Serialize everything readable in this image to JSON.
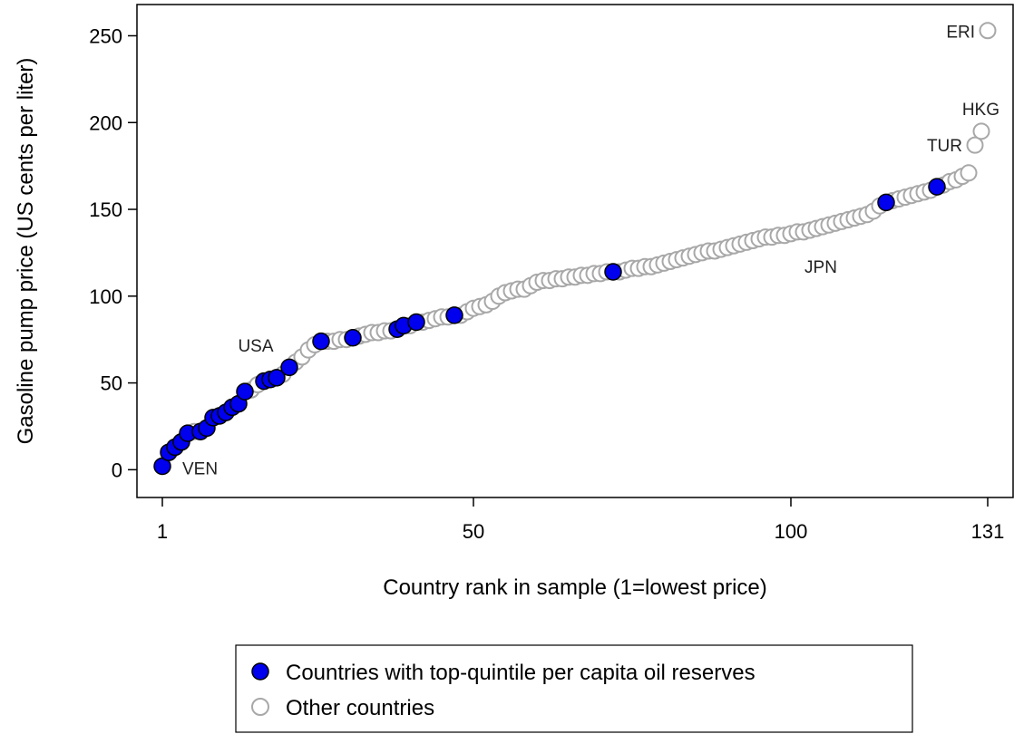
{
  "chart_data": {
    "type": "scatter",
    "xlabel": "Country rank in sample (1=lowest price)",
    "ylabel": "Gasoline pump price (US cents per liter)",
    "x_ticks": [
      1,
      50,
      100,
      131
    ],
    "y_ticks": [
      0,
      50,
      100,
      150,
      200,
      250
    ],
    "xlim": [
      -3,
      135
    ],
    "ylim": [
      -16,
      268
    ],
    "grid": false,
    "legend_position": "bottom",
    "colors": {
      "oil": "#0000ee",
      "oil_stroke": "#000000",
      "other_stroke": "#a8a8a8"
    },
    "series": [
      {
        "name": "Countries with top-quintile per capita oil reserves",
        "marker": "filled-circle",
        "points": [
          [
            1,
            2
          ],
          [
            2,
            10
          ],
          [
            3,
            13
          ],
          [
            4,
            16
          ],
          [
            5,
            21
          ],
          [
            7,
            22
          ],
          [
            8,
            24
          ],
          [
            9,
            30
          ],
          [
            10,
            31
          ],
          [
            11,
            33
          ],
          [
            12,
            36
          ],
          [
            13,
            38
          ],
          [
            14,
            45
          ],
          [
            17,
            51
          ],
          [
            18,
            52
          ],
          [
            19,
            53
          ],
          [
            21,
            59
          ],
          [
            26,
            74
          ],
          [
            31,
            76
          ],
          [
            38,
            81
          ],
          [
            39,
            83
          ],
          [
            41,
            85
          ],
          [
            47,
            89
          ],
          [
            72,
            114
          ],
          [
            115,
            154
          ],
          [
            123,
            163
          ]
        ]
      },
      {
        "name": "Other countries",
        "marker": "hollow-circle",
        "points": [
          [
            6,
            22
          ],
          [
            15,
            46
          ],
          [
            16,
            49
          ],
          [
            20,
            55
          ],
          [
            22,
            62
          ],
          [
            23,
            65
          ],
          [
            24,
            69
          ],
          [
            25,
            72
          ],
          [
            27,
            74
          ],
          [
            28,
            74
          ],
          [
            29,
            75
          ],
          [
            30,
            75
          ],
          [
            32,
            77
          ],
          [
            33,
            78
          ],
          [
            34,
            79
          ],
          [
            35,
            79
          ],
          [
            36,
            80
          ],
          [
            37,
            80
          ],
          [
            40,
            83
          ],
          [
            42,
            85
          ],
          [
            43,
            86
          ],
          [
            44,
            87
          ],
          [
            45,
            88
          ],
          [
            46,
            88
          ],
          [
            48,
            89
          ],
          [
            49,
            91
          ],
          [
            50,
            93
          ],
          [
            51,
            94
          ],
          [
            52,
            95
          ],
          [
            53,
            97
          ],
          [
            54,
            100
          ],
          [
            55,
            102
          ],
          [
            56,
            103
          ],
          [
            57,
            104
          ],
          [
            58,
            104
          ],
          [
            59,
            106
          ],
          [
            60,
            108
          ],
          [
            61,
            109
          ],
          [
            62,
            109
          ],
          [
            63,
            110
          ],
          [
            64,
            110
          ],
          [
            65,
            111
          ],
          [
            66,
            111
          ],
          [
            67,
            112
          ],
          [
            68,
            112
          ],
          [
            69,
            113
          ],
          [
            70,
            113
          ],
          [
            71,
            114
          ],
          [
            73,
            114
          ],
          [
            74,
            115
          ],
          [
            75,
            116
          ],
          [
            76,
            116
          ],
          [
            77,
            117
          ],
          [
            78,
            117
          ],
          [
            79,
            118
          ],
          [
            80,
            119
          ],
          [
            81,
            120
          ],
          [
            82,
            121
          ],
          [
            83,
            122
          ],
          [
            84,
            123
          ],
          [
            85,
            124
          ],
          [
            86,
            125
          ],
          [
            87,
            126
          ],
          [
            88,
            126
          ],
          [
            89,
            127
          ],
          [
            90,
            128
          ],
          [
            91,
            129
          ],
          [
            92,
            130
          ],
          [
            93,
            131
          ],
          [
            94,
            132
          ],
          [
            95,
            133
          ],
          [
            96,
            134
          ],
          [
            97,
            134
          ],
          [
            98,
            135
          ],
          [
            99,
            135
          ],
          [
            100,
            136
          ],
          [
            101,
            137
          ],
          [
            102,
            137
          ],
          [
            103,
            138
          ],
          [
            104,
            139
          ],
          [
            105,
            140
          ],
          [
            106,
            141
          ],
          [
            107,
            142
          ],
          [
            108,
            143
          ],
          [
            109,
            144
          ],
          [
            110,
            145
          ],
          [
            111,
            146
          ],
          [
            112,
            147
          ],
          [
            113,
            149
          ],
          [
            114,
            152
          ],
          [
            116,
            155
          ],
          [
            117,
            156
          ],
          [
            118,
            157
          ],
          [
            119,
            158
          ],
          [
            120,
            159
          ],
          [
            121,
            160
          ],
          [
            122,
            161
          ],
          [
            124,
            164
          ],
          [
            125,
            166
          ],
          [
            126,
            167
          ],
          [
            127,
            169
          ],
          [
            128,
            171
          ],
          [
            129,
            187
          ],
          [
            130,
            195
          ],
          [
            131,
            253
          ]
        ]
      }
    ],
    "annotations": [
      {
        "text": "VEN",
        "x": 1,
        "y": 2,
        "anchor": "start",
        "dx": 22,
        "dy": 9
      },
      {
        "text": "USA",
        "x": 15,
        "y": 46,
        "anchor": "middle",
        "dx": 5,
        "dy": -42
      },
      {
        "text": "JPN",
        "x": 104,
        "y": 139,
        "anchor": "middle",
        "dx": 5,
        "dy": 49
      },
      {
        "text": "TUR",
        "x": 129,
        "y": 187,
        "anchor": "end",
        "dx": -14,
        "dy": 7
      },
      {
        "text": "HKG",
        "x": 130,
        "y": 195,
        "anchor": "end",
        "dx": 20,
        "dy": -18
      },
      {
        "text": "ERI",
        "x": 131,
        "y": 253,
        "anchor": "end",
        "dx": -14,
        "dy": 8
      }
    ]
  }
}
